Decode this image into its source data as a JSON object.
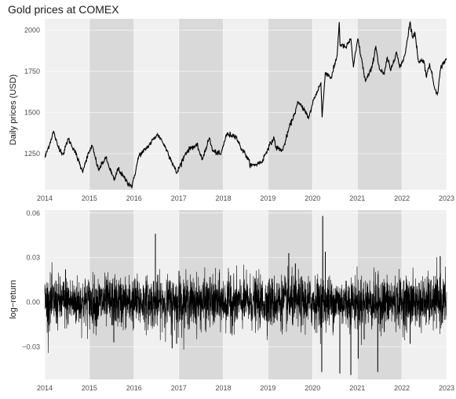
{
  "title": "Gold prices at COMEX",
  "colors": {
    "panel_background": "#ebebeb",
    "shaded_year_band": "#d9d9d9",
    "light_year_band": "#f0f0f0",
    "grid": "#ffffff",
    "line": "#000000"
  },
  "chart_data": [
    {
      "type": "line",
      "title": "Gold prices at COMEX",
      "xlabel": "",
      "ylabel": "Daily prices (USD)",
      "x_ticks": [
        "2014",
        "2015",
        "2016",
        "2017",
        "2018",
        "2019",
        "2020",
        "2021",
        "2022",
        "2023"
      ],
      "y_ticks": [
        1250,
        1500,
        1750,
        2000
      ],
      "xlim": [
        "2014-01-01",
        "2023-01-01"
      ],
      "ylim": [
        1030,
        2070
      ],
      "shaded_years": [
        2015,
        2017,
        2019,
        2021
      ],
      "series": [
        {
          "x": [
            "2014-01-02",
            "2014-02-15",
            "2014-03-14",
            "2014-04-15",
            "2014-06-02",
            "2014-07-10",
            "2014-09-01",
            "2014-11-05",
            "2014-12-05",
            "2015-01-22",
            "2015-03-17",
            "2015-05-15",
            "2015-07-24",
            "2015-08-24",
            "2015-09-30",
            "2015-11-15",
            "2015-12-17",
            "2016-02-11",
            "2016-03-10",
            "2016-05-02",
            "2016-07-06",
            "2016-08-05",
            "2016-10-06",
            "2016-12-15",
            "2017-02-28",
            "2017-04-17",
            "2017-06-06",
            "2017-07-10",
            "2017-09-08",
            "2017-10-06",
            "2017-12-12",
            "2018-01-25",
            "2018-04-11",
            "2018-05-21",
            "2018-07-02",
            "2018-08-16",
            "2018-09-28",
            "2018-11-13",
            "2018-12-31",
            "2019-02-20",
            "2019-03-07",
            "2019-05-02",
            "2019-06-25",
            "2019-08-07",
            "2019-09-04",
            "2019-10-31",
            "2019-11-29",
            "2020-01-08",
            "2020-03-09",
            "2020-03-19",
            "2020-04-14",
            "2020-06-03",
            "2020-07-20",
            "2020-08-06",
            "2020-08-12",
            "2020-09-30",
            "2020-11-09",
            "2020-11-30",
            "2021-01-05",
            "2021-03-08",
            "2021-04-30",
            "2021-06-01",
            "2021-06-30",
            "2021-08-09",
            "2021-09-03",
            "2021-09-30",
            "2021-11-16",
            "2021-12-15",
            "2022-01-25",
            "2022-03-08",
            "2022-03-31",
            "2022-04-18",
            "2022-05-16",
            "2022-06-30",
            "2022-07-21",
            "2022-08-15",
            "2022-09-28",
            "2022-10-20",
            "2022-11-15",
            "2022-12-30"
          ],
          "values": [
            1225,
            1320,
            1385,
            1300,
            1245,
            1340,
            1270,
            1142,
            1210,
            1300,
            1150,
            1225,
            1085,
            1160,
            1115,
            1070,
            1050,
            1240,
            1255,
            1300,
            1365,
            1345,
            1255,
            1130,
            1255,
            1290,
            1295,
            1210,
            1345,
            1265,
            1245,
            1365,
            1360,
            1290,
            1245,
            1175,
            1185,
            1200,
            1282,
            1345,
            1285,
            1270,
            1410,
            1495,
            1560,
            1515,
            1460,
            1575,
            1680,
            1470,
            1745,
            1710,
            1850,
            2050,
            1915,
            1895,
            1950,
            1775,
            1950,
            1690,
            1770,
            1905,
            1765,
            1730,
            1835,
            1755,
            1870,
            1770,
            1850,
            2050,
            1950,
            1985,
            1810,
            1815,
            1715,
            1800,
            1640,
            1620,
            1775,
            1830
          ]
        }
      ]
    },
    {
      "type": "line",
      "title": "",
      "xlabel": "",
      "ylabel": "log−return",
      "x_ticks": [
        "2014",
        "2015",
        "2016",
        "2017",
        "2018",
        "2019",
        "2020",
        "2021",
        "2022",
        "2023"
      ],
      "y_ticks": [
        -0.03,
        0.0,
        0.03,
        0.06
      ],
      "y_tick_labels": [
        "−0.03",
        "0.00",
        "0.03",
        "0.06"
      ],
      "xlim": [
        "2014-01-01",
        "2023-01-01"
      ],
      "ylim": [
        -0.052,
        0.062
      ],
      "shaded_years": [
        2015,
        2017,
        2019,
        2021
      ],
      "series": [
        {
          "note_values": "daily log-returns; notable extremes listed",
          "x": [
            "2014-06-20",
            "2015-07-20",
            "2016-06-24",
            "2016-11-08",
            "2016-12-15",
            "2017-01-03",
            "2018-03-01",
            "2019-06-20",
            "2019-08-13",
            "2020-03-16",
            "2020-03-24",
            "2020-04-14",
            "2020-08-11",
            "2020-11-09",
            "2021-01-08",
            "2021-02-26",
            "2021-06-17",
            "2021-08-09",
            "2022-03-09",
            "2022-11-10"
          ],
          "values": [
            0.022,
            -0.027,
            0.046,
            -0.031,
            -0.028,
            0.021,
            0.018,
            0.033,
            0.026,
            -0.047,
            0.058,
            0.034,
            -0.048,
            -0.049,
            -0.038,
            -0.025,
            -0.047,
            -0.02,
            -0.028,
            0.031
          ]
        }
      ]
    }
  ]
}
